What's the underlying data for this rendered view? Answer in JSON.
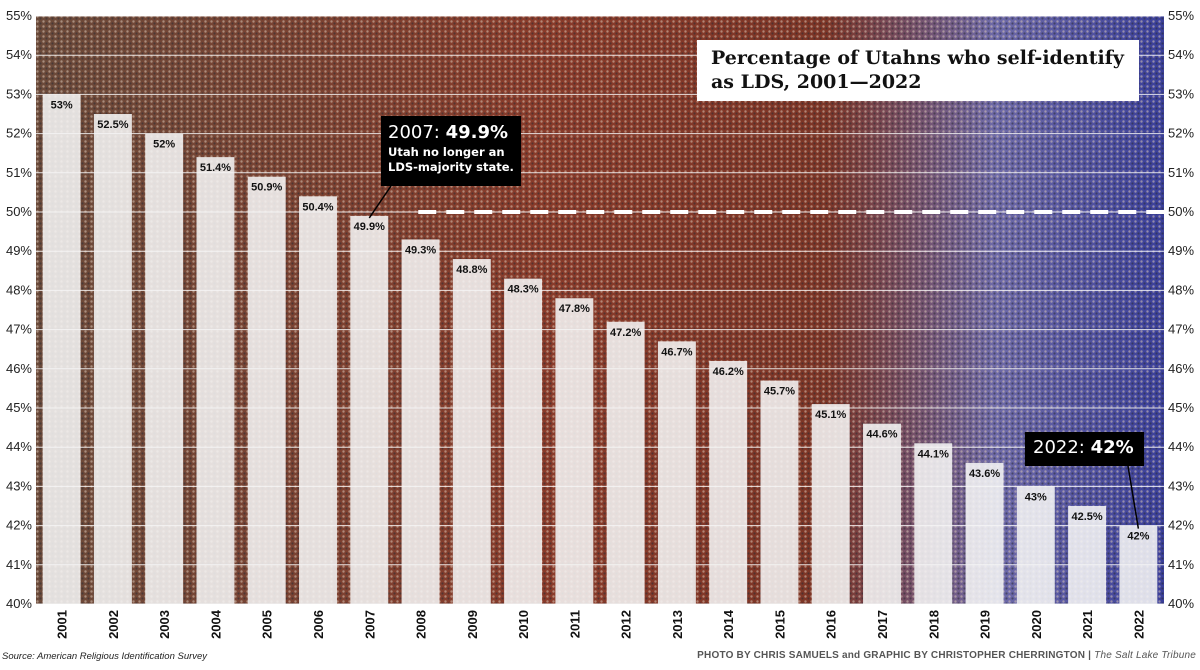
{
  "chart_data": {
    "type": "bar",
    "title": "Percentage of Utahns who self-identify as LDS, 2001—2022",
    "categories": [
      "2001",
      "2002",
      "2003",
      "2004",
      "2005",
      "2006",
      "2007",
      "2008",
      "2009",
      "2010",
      "2011",
      "2012",
      "2013",
      "2014",
      "2015",
      "2016",
      "2017",
      "2018",
      "2019",
      "2020",
      "2021",
      "2022"
    ],
    "values": [
      53,
      52.5,
      52,
      51.4,
      50.9,
      50.4,
      49.9,
      49.3,
      48.8,
      48.3,
      47.8,
      47.2,
      46.7,
      46.2,
      45.7,
      45.1,
      44.6,
      44.1,
      43.6,
      43,
      42.5,
      42
    ],
    "data_labels": [
      "53%",
      "52.5%",
      "52%",
      "51.4%",
      "50.9%",
      "50.4%",
      "49.9%",
      "49.3%",
      "48.8%",
      "48.3%",
      "47.8%",
      "47.2%",
      "46.7%",
      "46.2%",
      "45.7%",
      "45.1%",
      "44.6%",
      "44.1%",
      "43.6%",
      "43%",
      "42.5%",
      "42%"
    ],
    "ylim": [
      40,
      55
    ],
    "yticks": [
      40,
      41,
      42,
      43,
      44,
      45,
      46,
      47,
      48,
      49,
      50,
      51,
      52,
      53,
      54,
      55
    ],
    "ytick_labels": [
      "40%",
      "41%",
      "42%",
      "43%",
      "44%",
      "45%",
      "46%",
      "47%",
      "48%",
      "49%",
      "50%",
      "51%",
      "52%",
      "53%",
      "54%",
      "55%"
    ],
    "reference_line": 50,
    "grid": true,
    "axes_both_sides": true,
    "bar_color": "#f5f5f5",
    "annotations": [
      {
        "year_prefix": "2007: ",
        "value_text": "49.9%",
        "note_lines": [
          "Utah no longer an",
          "LDS-majority state."
        ]
      },
      {
        "year_prefix": "2022: ",
        "value_text": "42%"
      }
    ]
  },
  "footer": {
    "source": "Source: American Religious Identification Survey",
    "credit": "PHOTO BY CHRIS SAMUELS and GRAPHIC BY CHRISTOPHER CHERRINGTON",
    "separator": " | ",
    "publication": "The Salt Lake Tribune"
  }
}
